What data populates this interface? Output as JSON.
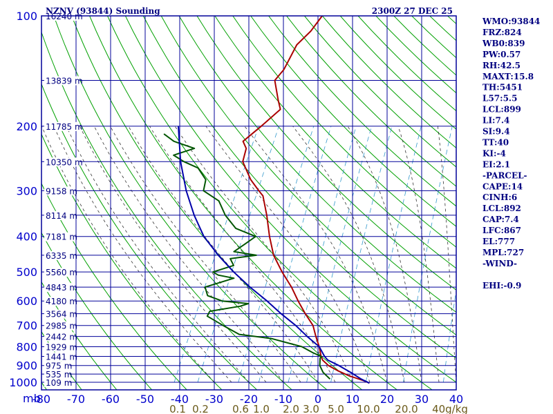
{
  "title_left": "NZNV (93844) Sounding",
  "title_right": "2300Z 27 DEC 25",
  "indices": [
    "WMO:93844",
    "FRZ:824",
    "WB0:839",
    "PW:0.57",
    "RH:42.5",
    "MAXT:15.8",
    "TH:5451",
    "L57:5.5",
    "LCL:899",
    "LI:7.4",
    "SI:9.4",
    "TT:40",
    "KI:-4",
    "EI:2.1",
    "-PARCEL-",
    "CAPE:14",
    "CINH:6",
    "LCL:892",
    "CAP:7.4",
    "LFC:867",
    "EL:777",
    "MPL:727",
    "-WIND-",
    "",
    "EHI:-0.9"
  ],
  "colors": {
    "grid": "#000099",
    "dry_adiabat": "#00a000",
    "moist_adiabat": "#333333",
    "mixing_ratio": "#3399cc",
    "temperature": "#aa0000",
    "dewpoint": "#005500",
    "parcel": "#0000aa"
  },
  "chart_data": {
    "type": "line",
    "xlabel": "",
    "ylabel": "",
    "x_axis_unit_label": "mb",
    "xlim": [
      -80,
      40
    ],
    "ylim": [
      1000,
      100
    ],
    "pressure_ticks": [
      "100",
      "200",
      "300",
      "400",
      "500",
      "600",
      "700",
      "800",
      "900",
      "1000"
    ],
    "temperature_ticks": [
      "-80",
      "-70",
      "-60",
      "-50",
      "-40",
      "-30",
      "-20",
      "-10",
      "0",
      "10",
      "20",
      "30",
      "40"
    ],
    "mixing_ratio_ticks": [
      "0.1",
      "0.2",
      "0.6",
      "1.0",
      "2.0",
      "3.0",
      "5.0",
      "10.0",
      "20.0",
      "40g/kg"
    ],
    "height_labels": [
      {
        "p": 100,
        "h": "16240 m"
      },
      {
        "p": 150,
        "h": "13839 m"
      },
      {
        "p": 200,
        "h": "11785 m"
      },
      {
        "p": 250,
        "h": "10350 m"
      },
      {
        "p": 300,
        "h": "9158 m"
      },
      {
        "p": 350,
        "h": "8114 m"
      },
      {
        "p": 400,
        "h": "7181 m"
      },
      {
        "p": 450,
        "h": "6335 m"
      },
      {
        "p": 500,
        "h": "5560 m"
      },
      {
        "p": 550,
        "h": "4843 m"
      },
      {
        "p": 600,
        "h": "4180 m"
      },
      {
        "p": 650,
        "h": "3564 m"
      },
      {
        "p": 700,
        "h": "2985 m"
      },
      {
        "p": 750,
        "h": "2442 m"
      },
      {
        "p": 800,
        "h": "1929 m"
      },
      {
        "p": 850,
        "h": "1441 m"
      },
      {
        "p": 900,
        "h": "975 m"
      },
      {
        "p": 950,
        "h": "535 m"
      },
      {
        "p": 1000,
        "h": "109 m"
      }
    ],
    "series": [
      {
        "name": "temperature",
        "points": [
          [
            1005,
            15
          ],
          [
            990,
            13
          ],
          [
            960,
            8
          ],
          [
            930,
            4
          ],
          [
            900,
            0.5
          ],
          [
            870,
            -2
          ],
          [
            850,
            -3
          ],
          [
            800,
            -5
          ],
          [
            750,
            -7.5
          ],
          [
            700,
            -10
          ],
          [
            650,
            -14
          ],
          [
            600,
            -18
          ],
          [
            550,
            -22
          ],
          [
            500,
            -27
          ],
          [
            450,
            -32
          ],
          [
            400,
            -36
          ],
          [
            350,
            -40
          ],
          [
            310,
            -44
          ],
          [
            300,
            -46
          ],
          [
            280,
            -50
          ],
          [
            250,
            -55
          ],
          [
            230,
            -56
          ],
          [
            220,
            -58
          ],
          [
            200,
            -55
          ],
          [
            180,
            -52
          ],
          [
            170,
            -54
          ],
          [
            150,
            -58
          ],
          [
            140,
            -57
          ],
          [
            120,
            -57
          ],
          [
            110,
            -55
          ],
          [
            100,
            -54
          ]
        ]
      },
      {
        "name": "dewpoint",
        "points": [
          [
            980,
            3
          ],
          [
            940,
            0
          ],
          [
            900,
            -2
          ],
          [
            860,
            -3
          ],
          [
            850,
            -3
          ],
          [
            830,
            -6
          ],
          [
            800,
            -10
          ],
          [
            760,
            -20
          ],
          [
            740,
            -30
          ],
          [
            700,
            -36
          ],
          [
            660,
            -42
          ],
          [
            640,
            -42
          ],
          [
            620,
            -34
          ],
          [
            610,
            -32
          ],
          [
            600,
            -40
          ],
          [
            580,
            -45
          ],
          [
            550,
            -47
          ],
          [
            520,
            -40
          ],
          [
            510,
            -45
          ],
          [
            500,
            -47
          ],
          [
            480,
            -42
          ],
          [
            460,
            -44
          ],
          [
            450,
            -37
          ],
          [
            440,
            -44
          ],
          [
            420,
            -42
          ],
          [
            400,
            -40
          ],
          [
            380,
            -47
          ],
          [
            350,
            -52
          ],
          [
            320,
            -56
          ],
          [
            300,
            -62
          ],
          [
            280,
            -63
          ],
          [
            260,
            -67
          ],
          [
            250,
            -72
          ],
          [
            240,
            -76
          ],
          [
            230,
            -71
          ],
          [
            220,
            -78
          ],
          [
            210,
            -82
          ]
        ]
      },
      {
        "name": "parcel",
        "points": [
          [
            1005,
            15
          ],
          [
            980,
            12
          ],
          [
            940,
            8
          ],
          [
            900,
            3.5
          ],
          [
            870,
            -0.5
          ],
          [
            850,
            -2
          ],
          [
            800,
            -5
          ],
          [
            750,
            -10
          ],
          [
            700,
            -15
          ],
          [
            650,
            -21
          ],
          [
            600,
            -27
          ],
          [
            550,
            -34
          ],
          [
            500,
            -41
          ],
          [
            450,
            -48
          ],
          [
            400,
            -55
          ],
          [
            350,
            -61
          ],
          [
            300,
            -67
          ],
          [
            250,
            -73
          ],
          [
            200,
            -79
          ]
        ]
      }
    ]
  }
}
